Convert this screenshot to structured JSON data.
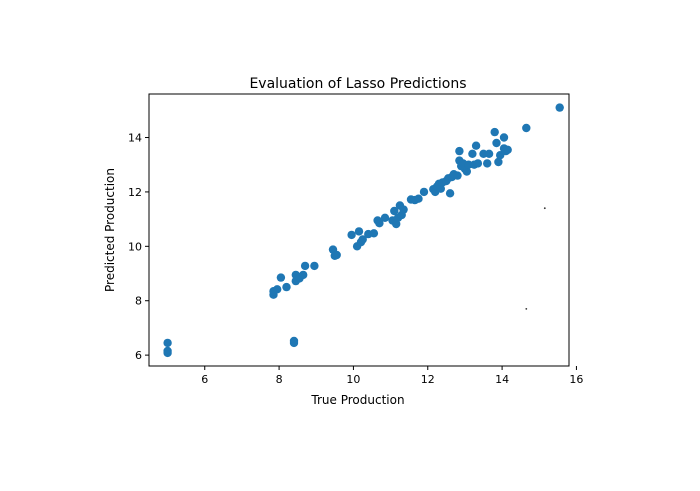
{
  "chart_data": {
    "type": "scatter",
    "title": "Evaluation of Lasso Predictions",
    "xlabel": "True Production",
    "ylabel": "Predicted Production",
    "xlim": [
      4.5,
      15.8
    ],
    "ylim": [
      5.6,
      15.6
    ],
    "xticks": [
      6,
      8,
      10,
      12,
      14,
      16
    ],
    "yticks": [
      6,
      8,
      10,
      12,
      14
    ],
    "grid": false,
    "series": [
      {
        "color": "#1f77b4",
        "points": [
          [
            5.0,
            6.45
          ],
          [
            5.0,
            6.15
          ],
          [
            5.0,
            6.08
          ],
          [
            7.85,
            8.22
          ],
          [
            7.85,
            8.35
          ],
          [
            7.95,
            8.42
          ],
          [
            8.05,
            8.85
          ],
          [
            8.2,
            8.5
          ],
          [
            8.4,
            6.52
          ],
          [
            8.4,
            6.45
          ],
          [
            8.45,
            8.72
          ],
          [
            8.45,
            8.95
          ],
          [
            8.55,
            8.82
          ],
          [
            8.65,
            8.95
          ],
          [
            8.7,
            9.28
          ],
          [
            8.95,
            9.28
          ],
          [
            9.45,
            9.88
          ],
          [
            9.5,
            9.65
          ],
          [
            9.55,
            9.68
          ],
          [
            9.95,
            10.42
          ],
          [
            10.1,
            10.0
          ],
          [
            10.15,
            10.55
          ],
          [
            10.2,
            10.15
          ],
          [
            10.25,
            10.25
          ],
          [
            10.4,
            10.45
          ],
          [
            10.55,
            10.48
          ],
          [
            10.65,
            10.95
          ],
          [
            10.7,
            10.85
          ],
          [
            10.85,
            11.05
          ],
          [
            11.05,
            10.95
          ],
          [
            11.1,
            11.3
          ],
          [
            11.15,
            10.82
          ],
          [
            11.2,
            11.05
          ],
          [
            11.25,
            11.5
          ],
          [
            11.3,
            11.15
          ],
          [
            11.35,
            11.35
          ],
          [
            11.55,
            11.72
          ],
          [
            11.65,
            11.7
          ],
          [
            11.75,
            11.75
          ],
          [
            11.9,
            12.0
          ],
          [
            12.15,
            12.1
          ],
          [
            12.2,
            12.0
          ],
          [
            12.25,
            12.2
          ],
          [
            12.3,
            12.3
          ],
          [
            12.35,
            12.12
          ],
          [
            12.4,
            12.35
          ],
          [
            12.5,
            12.4
          ],
          [
            12.55,
            12.5
          ],
          [
            12.6,
            11.95
          ],
          [
            12.65,
            12.55
          ],
          [
            12.7,
            12.65
          ],
          [
            12.8,
            12.6
          ],
          [
            12.85,
            13.5
          ],
          [
            12.85,
            13.15
          ],
          [
            12.9,
            12.95
          ],
          [
            12.95,
            13.05
          ],
          [
            13.0,
            12.85
          ],
          [
            13.05,
            12.75
          ],
          [
            13.1,
            13.0
          ],
          [
            13.2,
            13.4
          ],
          [
            13.25,
            13.0
          ],
          [
            13.3,
            13.7
          ],
          [
            13.35,
            13.05
          ],
          [
            13.5,
            13.4
          ],
          [
            13.6,
            13.05
          ],
          [
            13.65,
            13.4
          ],
          [
            13.8,
            14.2
          ],
          [
            13.85,
            13.8
          ],
          [
            13.9,
            13.1
          ],
          [
            13.95,
            13.35
          ],
          [
            14.05,
            14.0
          ],
          [
            14.05,
            13.6
          ],
          [
            14.1,
            13.5
          ],
          [
            14.15,
            13.55
          ],
          [
            14.65,
            14.35
          ],
          [
            15.55,
            15.1
          ]
        ]
      }
    ],
    "stray_marks": [
      [
        15.15,
        11.4
      ],
      [
        14.65,
        7.7
      ]
    ]
  }
}
